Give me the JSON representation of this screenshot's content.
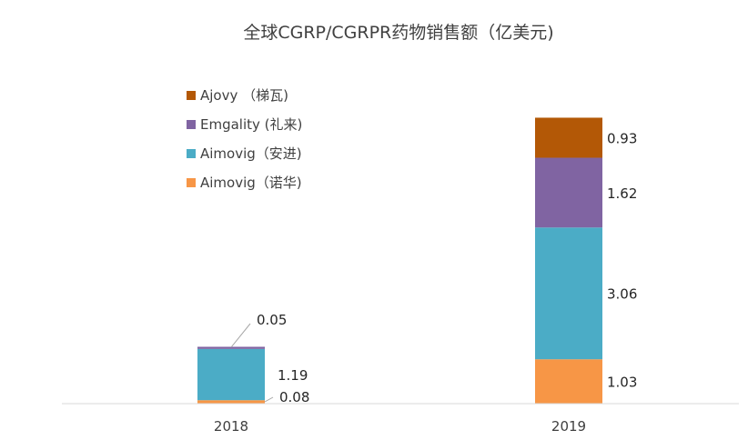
{
  "chart_data": {
    "type": "bar",
    "stacked": true,
    "title": "全球CGRP/CGRPR药物销售额（亿美元)",
    "categories": [
      "2018",
      "2019"
    ],
    "series": [
      {
        "name": "Aimovig（诺华)",
        "color": "#F79646",
        "values": [
          0.08,
          1.03
        ]
      },
      {
        "name": "Aimovig（安进)",
        "color": "#4BACC6",
        "values": [
          1.19,
          3.06
        ]
      },
      {
        "name": "Emgality (礼来)",
        "color": "#8064A2",
        "values": [
          0.05,
          1.62
        ]
      },
      {
        "name": "Ajovy （梯瓦)",
        "color": "#B35806",
        "values": [
          0,
          0.93
        ]
      }
    ],
    "legend_position": "top-left",
    "grid": false,
    "axis_color": "#d9d9d9"
  }
}
